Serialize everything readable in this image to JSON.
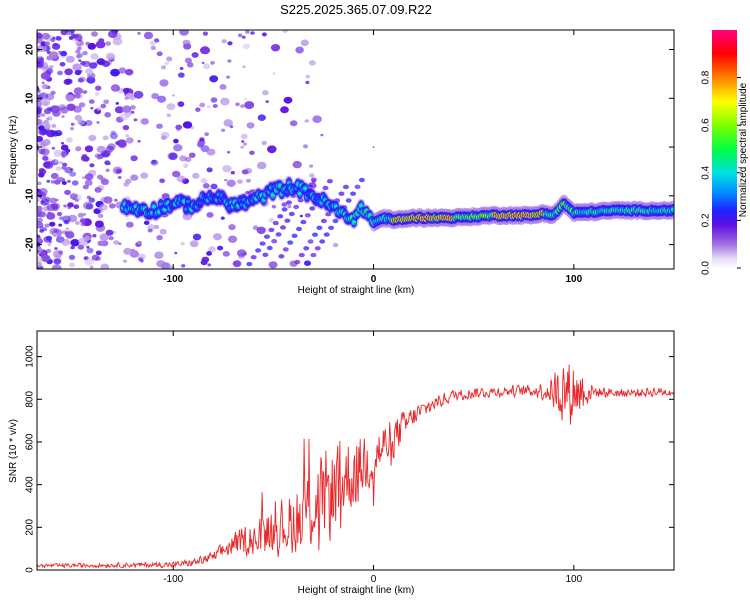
{
  "figure_title": "S225.2025.365.07.09.R22",
  "chart_data": [
    {
      "type": "heatmap",
      "title": "S225.2025.365.07.09.R22",
      "xlabel": "Height of straight line (km)",
      "ylabel": "Frequency (Hz)",
      "xlim": [
        -168,
        150
      ],
      "ylim": [
        -25,
        24
      ],
      "xticks": [
        -100,
        0,
        100
      ],
      "yticks": [
        -20,
        -10,
        0,
        10,
        20
      ],
      "colorbar": {
        "label": "Normalized spectral amplitude",
        "range": [
          0,
          1
        ],
        "ticks": [
          0.0,
          0.2,
          0.4,
          0.6,
          0.8
        ],
        "tick_labels": [
          "0.0",
          "0.2",
          "0.4",
          "0.6",
          "0.8"
        ]
      },
      "ridge": {
        "description": "dominant frequency track",
        "x": [
          -120,
          -110,
          -100,
          -90,
          -80,
          -70,
          -60,
          -50,
          -40,
          -30,
          -20,
          -15,
          -10,
          -5,
          0,
          5,
          10,
          20,
          40,
          60,
          80,
          85,
          90,
          95,
          100,
          120,
          150
        ],
        "y": [
          -12.5,
          -13,
          -11.5,
          -12,
          -10,
          -12,
          -11,
          -9,
          -8,
          -10,
          -12.5,
          -14,
          -14.5,
          -12.5,
          -15.5,
          -14.5,
          -15,
          -14.5,
          -14.5,
          -14,
          -14,
          -13.5,
          -14,
          -11.5,
          -13.5,
          -13,
          -13
        ]
      }
    },
    {
      "type": "line",
      "xlabel": "Height of straight line (km)",
      "ylabel": "SNR (10 * v/v)",
      "xlim": [
        -168,
        150
      ],
      "ylim": [
        0,
        1120
      ],
      "xticks": [
        -100,
        0,
        100
      ],
      "yticks": [
        0,
        200,
        400,
        600,
        800,
        1000
      ],
      "series_color": "#e8282a",
      "envelope": {
        "x": [
          -168,
          -100,
          -90,
          -80,
          -70,
          -60,
          -50,
          -40,
          -30,
          -20,
          -10,
          0,
          10,
          20,
          30,
          40,
          50,
          60,
          70,
          80,
          88,
          95,
          100,
          110,
          120,
          130,
          140,
          150
        ],
        "mean": [
          20,
          25,
          35,
          60,
          120,
          150,
          190,
          230,
          300,
          380,
          460,
          530,
          620,
          720,
          780,
          820,
          830,
          835,
          840,
          840,
          840,
          840,
          840,
          835,
          830,
          830,
          835,
          835
        ],
        "amplitude": [
          10,
          15,
          20,
          30,
          60,
          90,
          130,
          180,
          220,
          250,
          200,
          160,
          110,
          60,
          40,
          30,
          30,
          30,
          30,
          30,
          70,
          180,
          180,
          30,
          25,
          25,
          25,
          25
        ]
      }
    }
  ]
}
